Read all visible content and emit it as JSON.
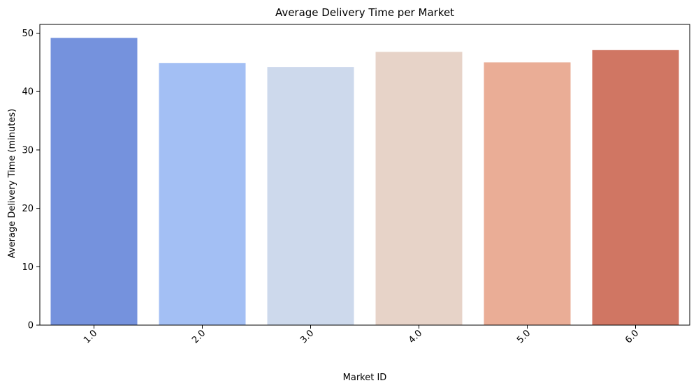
{
  "chart_data": {
    "type": "bar",
    "title": "Average Delivery Time per Market",
    "xlabel": "Market ID",
    "ylabel": "Average Delivery Time (minutes)",
    "categories": [
      "1.0",
      "2.0",
      "3.0",
      "4.0",
      "5.0",
      "6.0"
    ],
    "values": [
      49.2,
      44.9,
      44.2,
      46.8,
      45.0,
      47.1
    ],
    "colors": [
      "#7592dd",
      "#a3bff4",
      "#cdd9ec",
      "#e7d3c8",
      "#eaad96",
      "#d07663"
    ],
    "ylim": [
      0,
      51.5
    ],
    "yticks": [
      0,
      10,
      20,
      30,
      40,
      50
    ],
    "x_tick_rotation": 45,
    "grid": false,
    "legend": "none"
  }
}
